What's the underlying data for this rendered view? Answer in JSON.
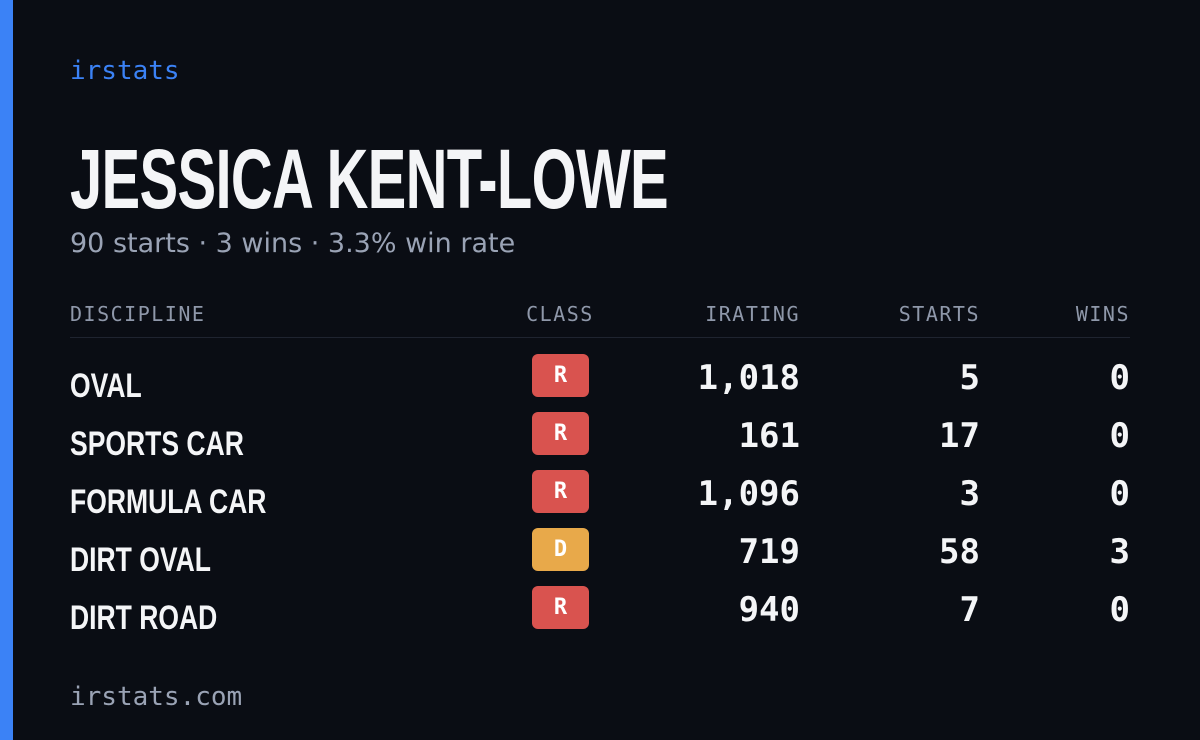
{
  "brand": "irstats",
  "driver": {
    "name": "JESSICA KENT-LOWE",
    "summary": "90 starts · 3 wins · 3.3% win rate"
  },
  "table": {
    "headers": [
      "DISCIPLINE",
      "CLASS",
      "IRATING",
      "STARTS",
      "WINS"
    ],
    "rows": [
      [
        "OVAL",
        "R",
        "1,018",
        "5",
        "0"
      ],
      [
        "SPORTS CAR",
        "R",
        "161",
        "17",
        "0"
      ],
      [
        "FORMULA CAR",
        "R",
        "1,096",
        "3",
        "0"
      ],
      [
        "DIRT OVAL",
        "D",
        "719",
        "58",
        "3"
      ],
      [
        "DIRT ROAD",
        "R",
        "940",
        "7",
        "0"
      ]
    ]
  },
  "footer": "irstats.com"
}
